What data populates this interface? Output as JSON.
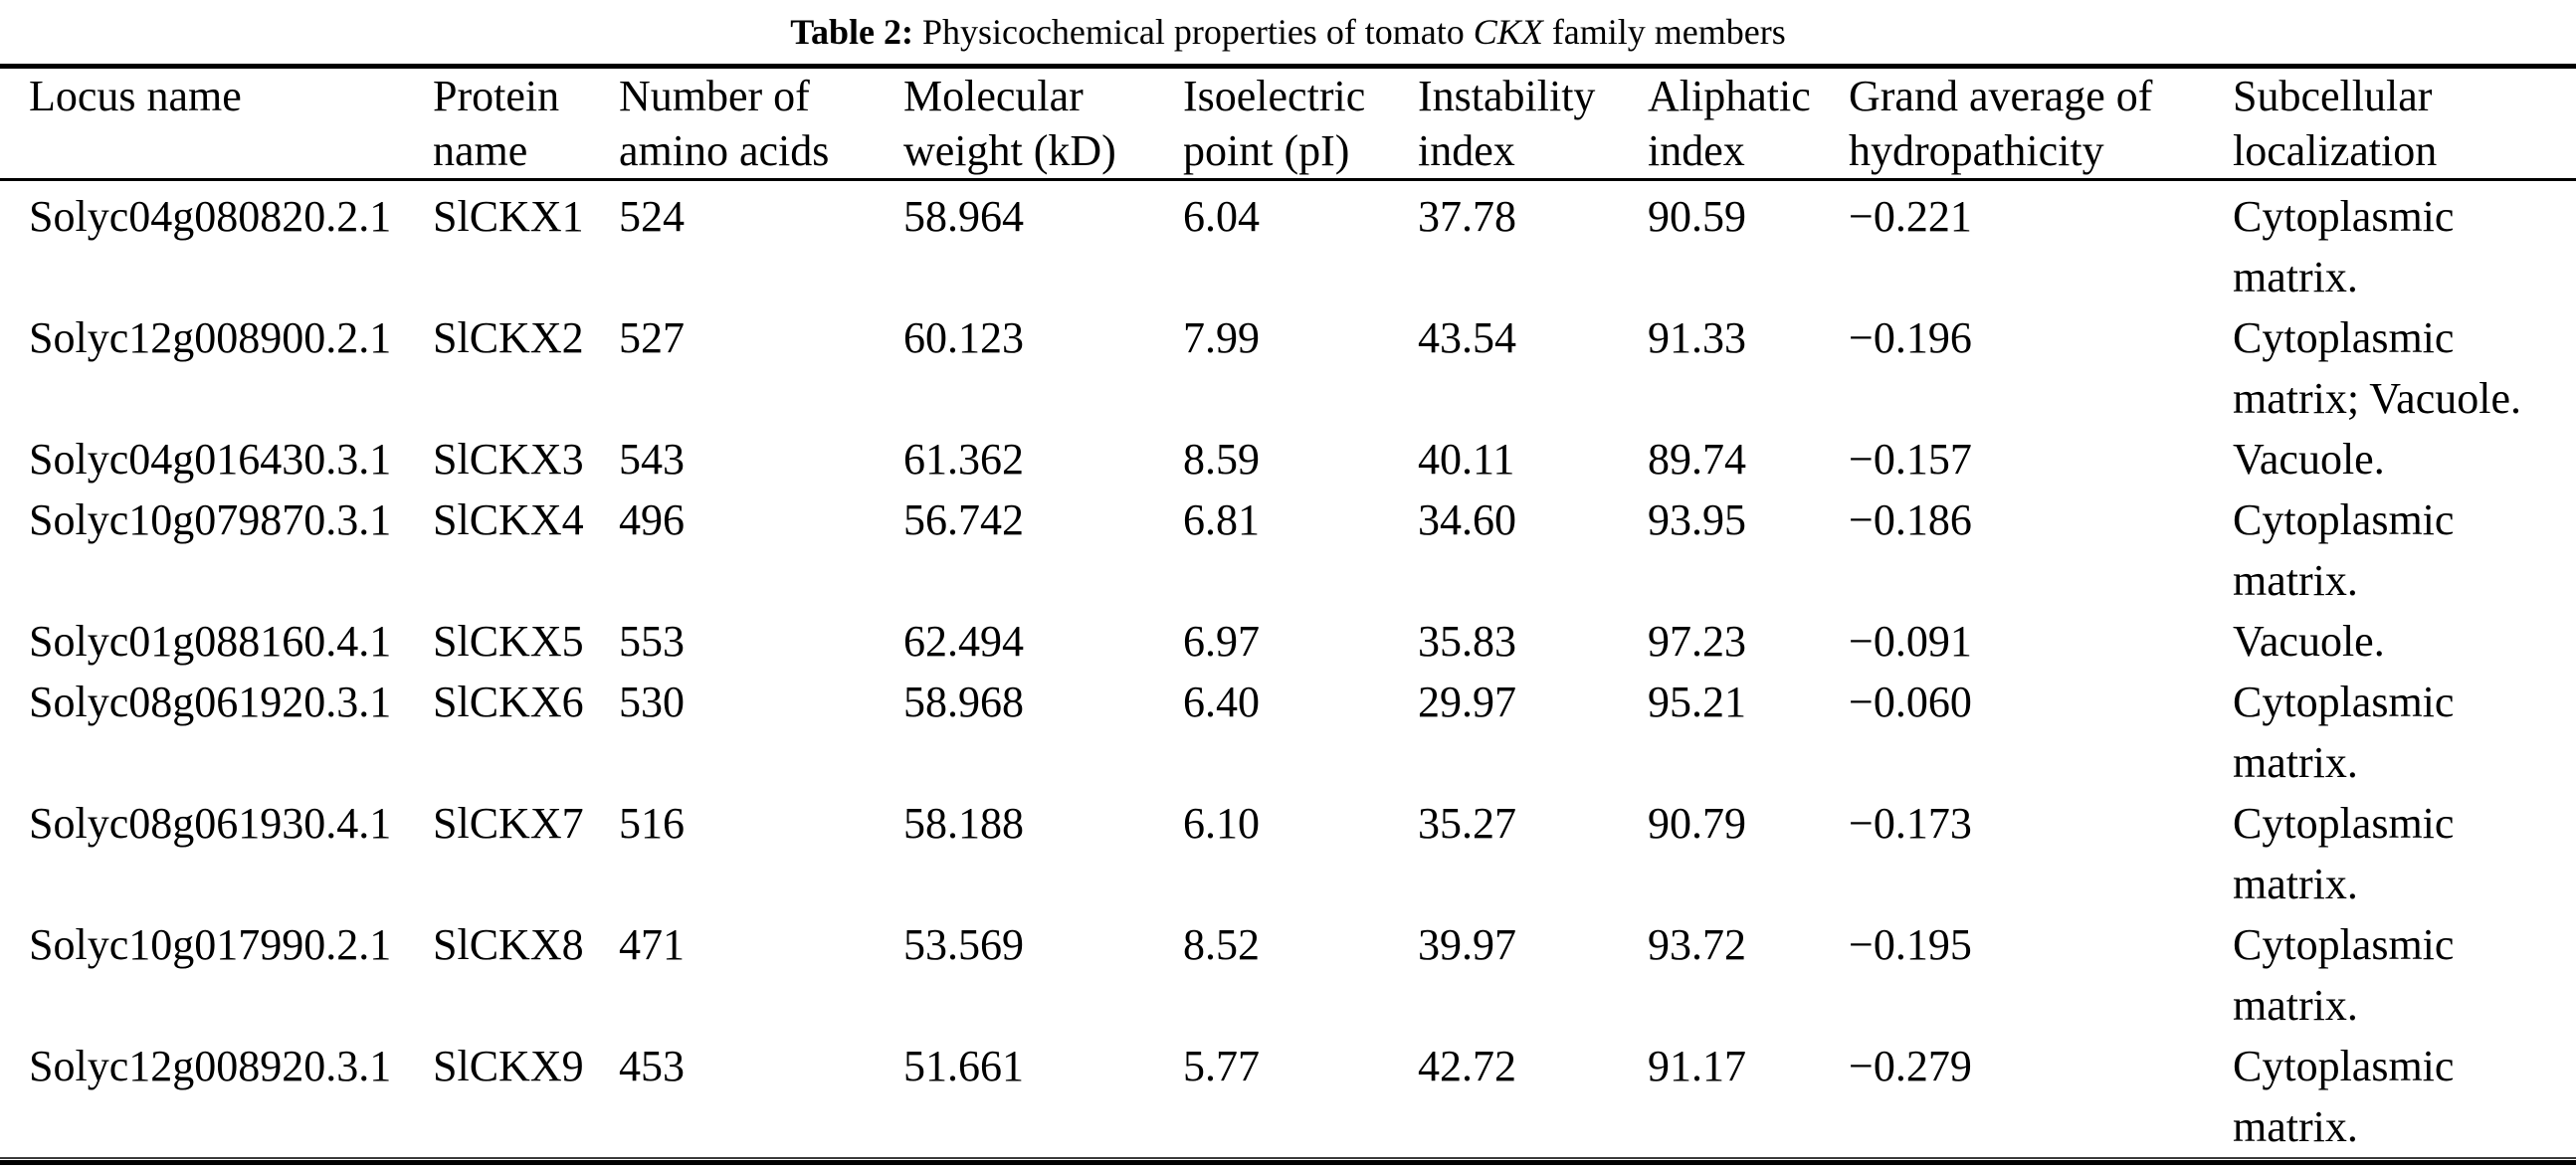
{
  "caption": {
    "label": "Table 2:",
    "text_before_italic": " Physicochemical properties of tomato ",
    "italic_term": "CKX",
    "text_after_italic": " family members"
  },
  "colors": {
    "text": "#000000",
    "background": "#ffffff",
    "rule": "#000000"
  },
  "table": {
    "columns": [
      "Locus name",
      "Protein name",
      "Number of amino acids",
      "Molecular weight (kD)",
      "Isoelectric point (pI)",
      "Instability index",
      "Aliphatic index",
      "Grand average of hydropathicity",
      "Subcellular localization"
    ],
    "fields": [
      "locus",
      "protein",
      "amino_acids",
      "mol_weight",
      "isoelectric_point",
      "instability_index",
      "aliphatic_index",
      "gravy",
      "localization"
    ],
    "rows": [
      {
        "locus": "Solyc04g080820.2.1",
        "protein": "SlCKX1",
        "amino_acids": "524",
        "mol_weight": "58.964",
        "isoelectric_point": "6.04",
        "instability_index": "37.78",
        "aliphatic_index": "90.59",
        "gravy": "−0.221",
        "localization": "Cytoplasmic matrix."
      },
      {
        "locus": "Solyc12g008900.2.1",
        "protein": "SlCKX2",
        "amino_acids": "527",
        "mol_weight": "60.123",
        "isoelectric_point": "7.99",
        "instability_index": "43.54",
        "aliphatic_index": "91.33",
        "gravy": "−0.196",
        "localization": "Cytoplasmic matrix; Vacuole."
      },
      {
        "locus": "Solyc04g016430.3.1",
        "protein": "SlCKX3",
        "amino_acids": "543",
        "mol_weight": "61.362",
        "isoelectric_point": "8.59",
        "instability_index": "40.11",
        "aliphatic_index": "89.74",
        "gravy": "−0.157",
        "localization": "Vacuole."
      },
      {
        "locus": "Solyc10g079870.3.1",
        "protein": "SlCKX4",
        "amino_acids": "496",
        "mol_weight": "56.742",
        "isoelectric_point": "6.81",
        "instability_index": "34.60",
        "aliphatic_index": "93.95",
        "gravy": "−0.186",
        "localization": "Cytoplasmic matrix."
      },
      {
        "locus": "Solyc01g088160.4.1",
        "protein": "SlCKX5",
        "amino_acids": "553",
        "mol_weight": "62.494",
        "isoelectric_point": "6.97",
        "instability_index": "35.83",
        "aliphatic_index": "97.23",
        "gravy": "−0.091",
        "localization": "Vacuole."
      },
      {
        "locus": "Solyc08g061920.3.1",
        "protein": "SlCKX6",
        "amino_acids": "530",
        "mol_weight": "58.968",
        "isoelectric_point": "6.40",
        "instability_index": "29.97",
        "aliphatic_index": "95.21",
        "gravy": "−0.060",
        "localization": "Cytoplasmic matrix."
      },
      {
        "locus": "Solyc08g061930.4.1",
        "protein": "SlCKX7",
        "amino_acids": "516",
        "mol_weight": "58.188",
        "isoelectric_point": "6.10",
        "instability_index": "35.27",
        "aliphatic_index": "90.79",
        "gravy": "−0.173",
        "localization": "Cytoplasmic matrix."
      },
      {
        "locus": "Solyc10g017990.2.1",
        "protein": "SlCKX8",
        "amino_acids": "471",
        "mol_weight": "53.569",
        "isoelectric_point": "8.52",
        "instability_index": "39.97",
        "aliphatic_index": "93.72",
        "gravy": "−0.195",
        "localization": "Cytoplasmic matrix."
      },
      {
        "locus": "Solyc12g008920.3.1",
        "protein": "SlCKX9",
        "amino_acids": "453",
        "mol_weight": "51.661",
        "isoelectric_point": "5.77",
        "instability_index": "42.72",
        "aliphatic_index": "91.17",
        "gravy": "−0.279",
        "localization": "Cytoplasmic matrix."
      }
    ]
  }
}
